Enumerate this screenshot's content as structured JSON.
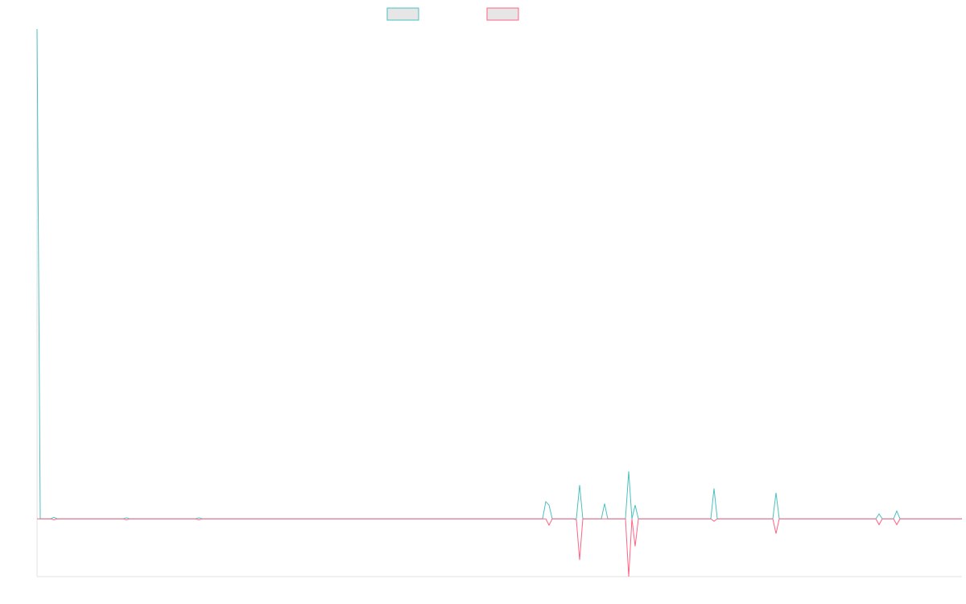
{
  "chart_data": {
    "type": "line",
    "x": [
      0,
      4,
      17,
      21,
      25,
      107,
      111,
      115,
      197,
      201,
      205,
      628,
      632,
      636,
      640,
      666,
      670,
      674,
      678,
      701,
      705,
      709,
      731,
      735,
      739,
      743,
      747,
      837,
      841,
      845,
      914,
      918,
      922,
      1042,
      1046,
      1050,
      1064,
      1068,
      1072,
      1149
    ],
    "xlim": [
      0,
      1149
    ],
    "ylim": [
      -118,
      1000
    ],
    "series": [
      {
        "color": "#4bc0c0",
        "values": [
          1000,
          0,
          0,
          3,
          0,
          0,
          2,
          0,
          0,
          2,
          0,
          0,
          35,
          28,
          0,
          0,
          0,
          69,
          0,
          0,
          31,
          0,
          0,
          97,
          0,
          28,
          0,
          0,
          62,
          0,
          0,
          53,
          0,
          0,
          10,
          0,
          0,
          16,
          0,
          0
        ]
      },
      {
        "color": "#ff6384",
        "values": [
          0,
          0,
          0,
          -2,
          0,
          0,
          -2,
          0,
          0,
          -2,
          0,
          0,
          0,
          -13,
          0,
          0,
          -2,
          -84,
          0,
          0,
          0,
          0,
          0,
          -118,
          0,
          -56,
          0,
          0,
          -5,
          0,
          0,
          -30,
          0,
          0,
          -12,
          0,
          0,
          -12,
          0,
          0
        ]
      }
    ],
    "legend": "top"
  }
}
